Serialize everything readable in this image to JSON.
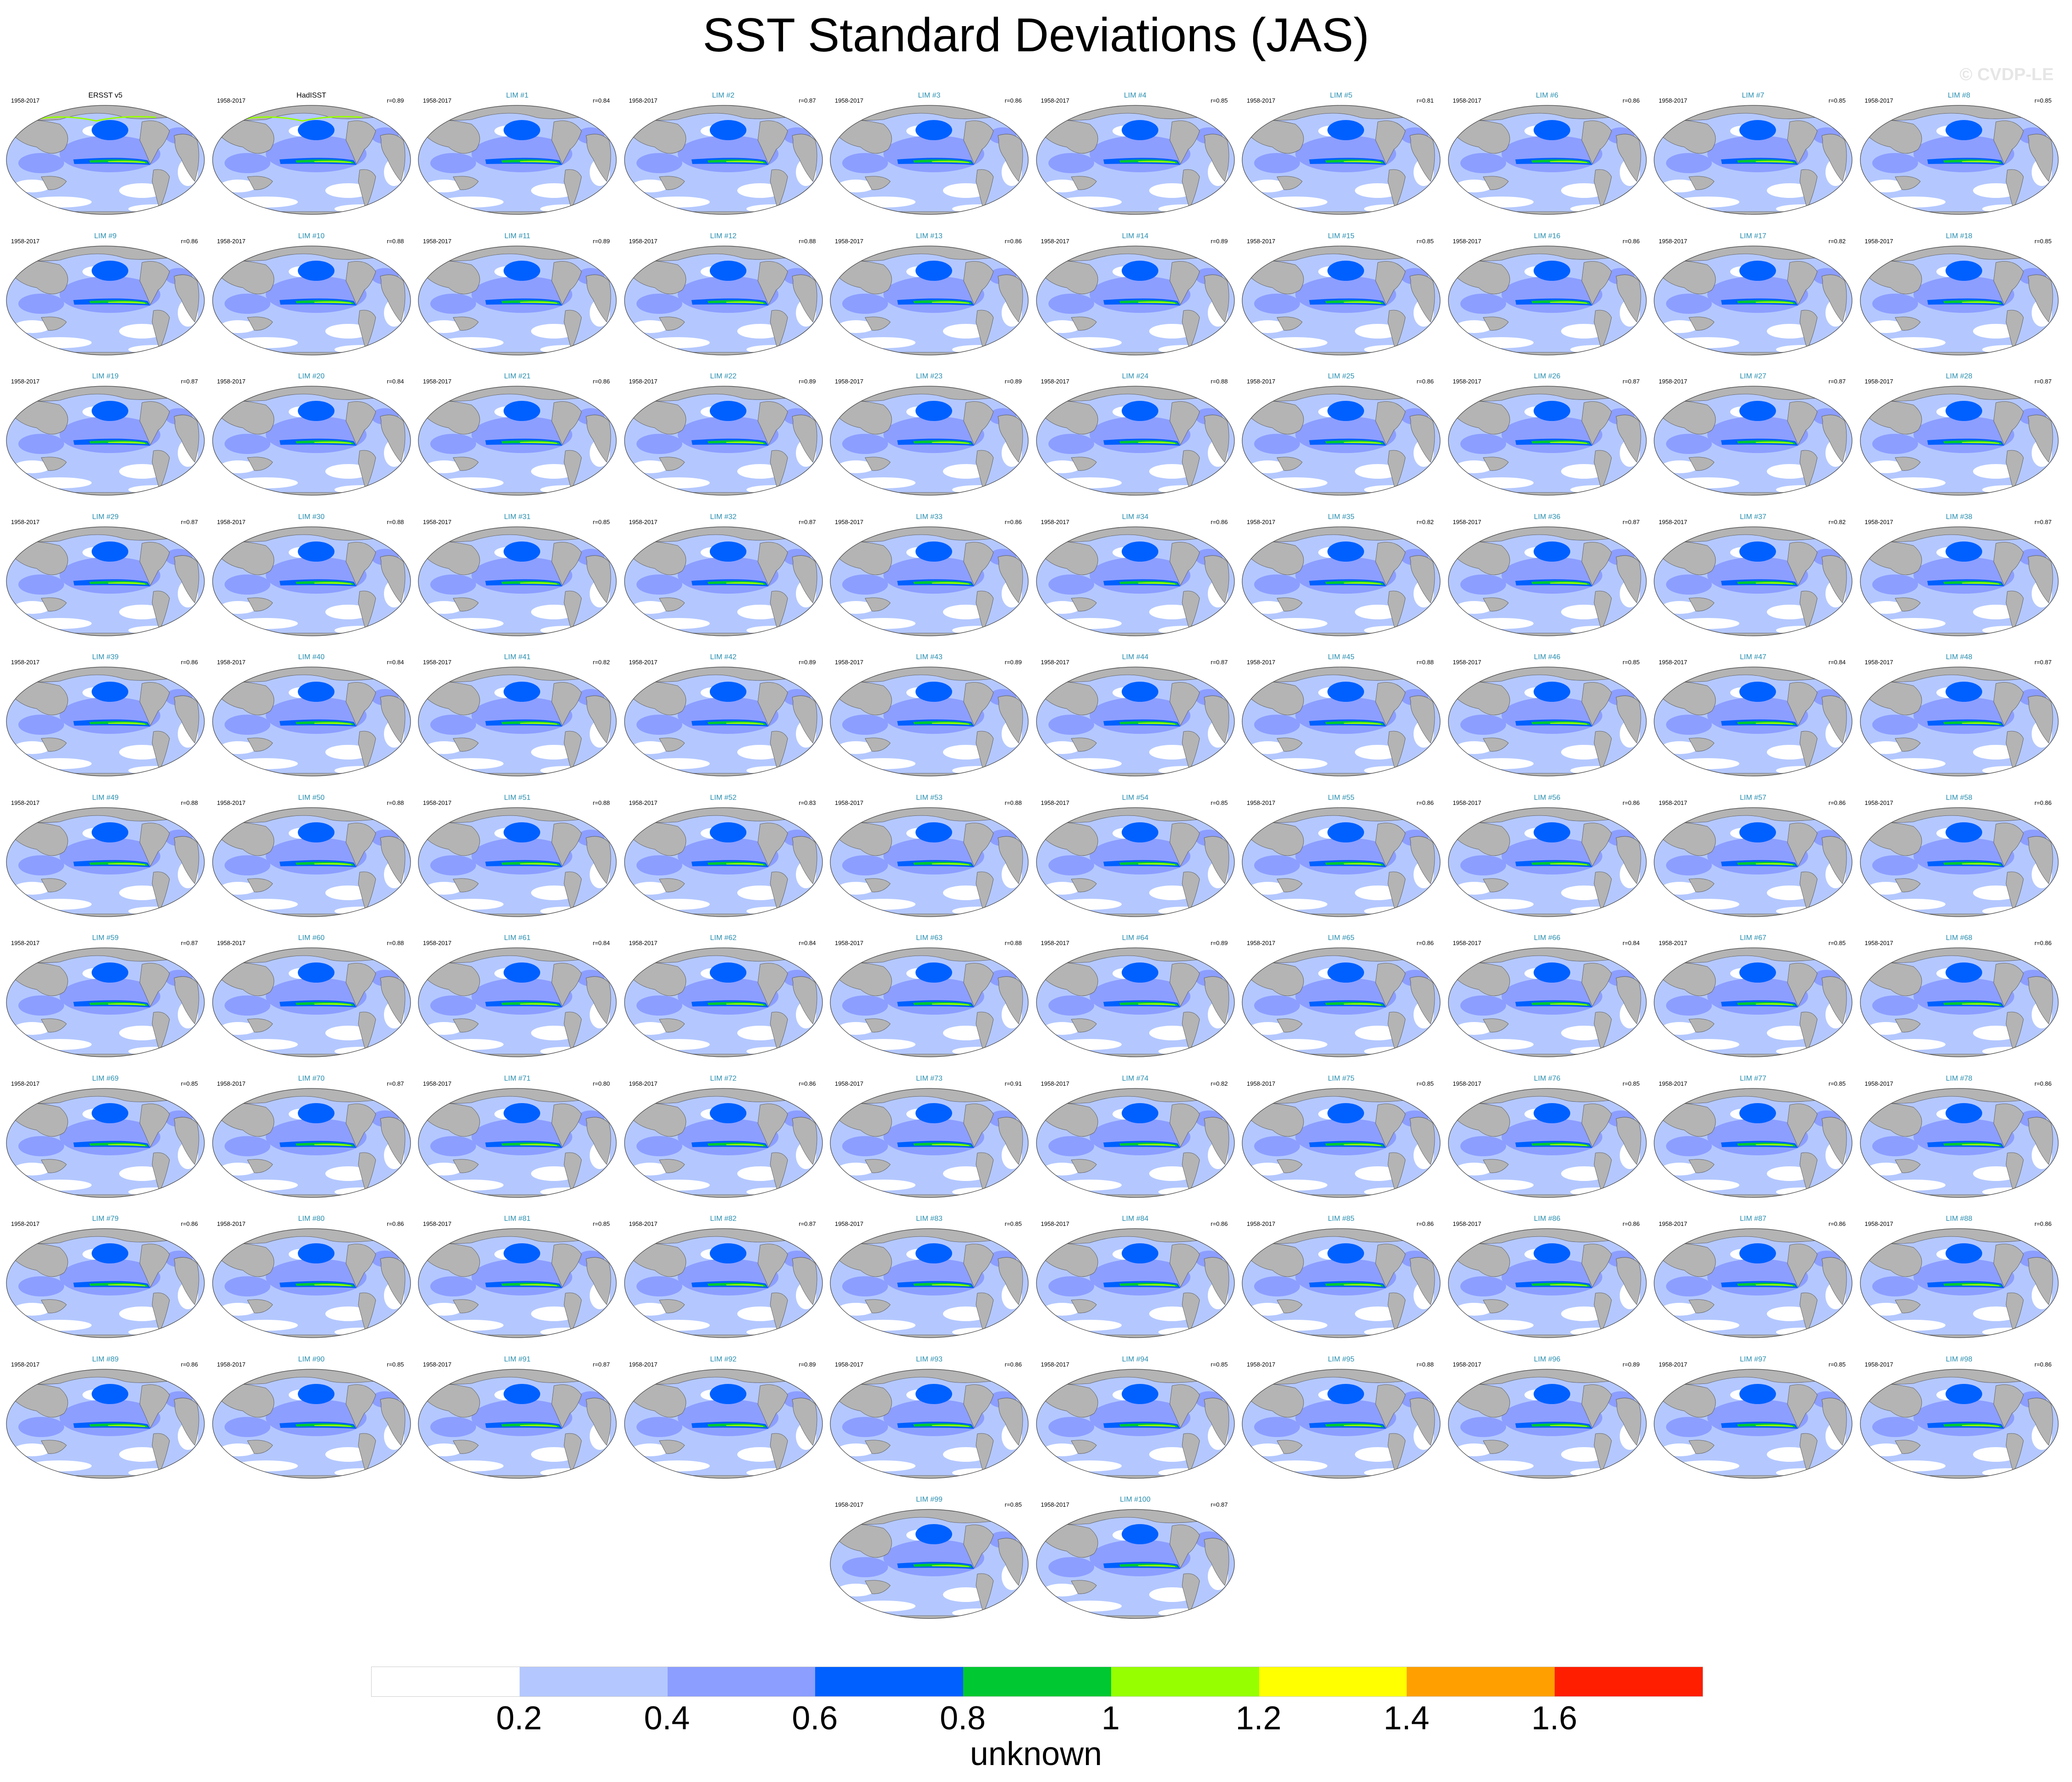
{
  "page": {
    "title": "SST Standard Deviations (JAS)",
    "watermark": "© CVDP-LE"
  },
  "chart_data": {
    "type": "heatmap",
    "title": "SST Standard Deviations (JAS)",
    "colorbar": {
      "levels": [
        0.2,
        0.4,
        0.6,
        0.8,
        1,
        1.2,
        1.4,
        1.6
      ],
      "tick_labels": [
        "0.2",
        "0.4",
        "0.6",
        "0.8",
        "1",
        "1.2",
        "1.4",
        "1.6"
      ],
      "colors": [
        "#ffffff",
        "#b4c8ff",
        "#8c9eff",
        "#0060ff",
        "#00c832",
        "#96ff00",
        "#ffff00",
        "#ffa000",
        "#ff1e00"
      ],
      "unit_label": "unknown"
    },
    "period": "1958-2017",
    "panels": [
      {
        "title": "ERSST v5",
        "period": "1958-2017",
        "corr": "",
        "obs": true
      },
      {
        "title": "HadISST",
        "period": "1958-2017",
        "corr": "r=0.89",
        "obs": true
      },
      {
        "title": "LIM #1",
        "period": "1958-2017",
        "corr": "r=0.84"
      },
      {
        "title": "LIM #2",
        "period": "1958-2017",
        "corr": "r=0.87"
      },
      {
        "title": "LIM #3",
        "period": "1958-2017",
        "corr": "r=0.86"
      },
      {
        "title": "LIM #4",
        "period": "1958-2017",
        "corr": "r=0.85"
      },
      {
        "title": "LIM #5",
        "period": "1958-2017",
        "corr": "r=0.81"
      },
      {
        "title": "LIM #6",
        "period": "1958-2017",
        "corr": "r=0.86"
      },
      {
        "title": "LIM #7",
        "period": "1958-2017",
        "corr": "r=0.85"
      },
      {
        "title": "LIM #8",
        "period": "1958-2017",
        "corr": "r=0.85"
      },
      {
        "title": "LIM #9",
        "period": "1958-2017",
        "corr": "r=0.86"
      },
      {
        "title": "LIM #10",
        "period": "1958-2017",
        "corr": "r=0.88"
      },
      {
        "title": "LIM #11",
        "period": "1958-2017",
        "corr": "r=0.89"
      },
      {
        "title": "LIM #12",
        "period": "1958-2017",
        "corr": "r=0.88"
      },
      {
        "title": "LIM #13",
        "period": "1958-2017",
        "corr": "r=0.86"
      },
      {
        "title": "LIM #14",
        "period": "1958-2017",
        "corr": "r=0.89"
      },
      {
        "title": "LIM #15",
        "period": "1958-2017",
        "corr": "r=0.85"
      },
      {
        "title": "LIM #16",
        "period": "1958-2017",
        "corr": "r=0.86"
      },
      {
        "title": "LIM #17",
        "period": "1958-2017",
        "corr": "r=0.82"
      },
      {
        "title": "LIM #18",
        "period": "1958-2017",
        "corr": "r=0.85"
      },
      {
        "title": "LIM #19",
        "period": "1958-2017",
        "corr": "r=0.87"
      },
      {
        "title": "LIM #20",
        "period": "1958-2017",
        "corr": "r=0.84"
      },
      {
        "title": "LIM #21",
        "period": "1958-2017",
        "corr": "r=0.86"
      },
      {
        "title": "LIM #22",
        "period": "1958-2017",
        "corr": "r=0.89"
      },
      {
        "title": "LIM #23",
        "period": "1958-2017",
        "corr": "r=0.89"
      },
      {
        "title": "LIM #24",
        "period": "1958-2017",
        "corr": "r=0.88"
      },
      {
        "title": "LIM #25",
        "period": "1958-2017",
        "corr": "r=0.86"
      },
      {
        "title": "LIM #26",
        "period": "1958-2017",
        "corr": "r=0.87"
      },
      {
        "title": "LIM #27",
        "period": "1958-2017",
        "corr": "r=0.87"
      },
      {
        "title": "LIM #28",
        "period": "1958-2017",
        "corr": "r=0.87"
      },
      {
        "title": "LIM #29",
        "period": "1958-2017",
        "corr": "r=0.87"
      },
      {
        "title": "LIM #30",
        "period": "1958-2017",
        "corr": "r=0.88"
      },
      {
        "title": "LIM #31",
        "period": "1958-2017",
        "corr": "r=0.85"
      },
      {
        "title": "LIM #32",
        "period": "1958-2017",
        "corr": "r=0.87"
      },
      {
        "title": "LIM #33",
        "period": "1958-2017",
        "corr": "r=0.86"
      },
      {
        "title": "LIM #34",
        "period": "1958-2017",
        "corr": "r=0.86"
      },
      {
        "title": "LIM #35",
        "period": "1958-2017",
        "corr": "r=0.82"
      },
      {
        "title": "LIM #36",
        "period": "1958-2017",
        "corr": "r=0.87"
      },
      {
        "title": "LIM #37",
        "period": "1958-2017",
        "corr": "r=0.82"
      },
      {
        "title": "LIM #38",
        "period": "1958-2017",
        "corr": "r=0.87"
      },
      {
        "title": "LIM #39",
        "period": "1958-2017",
        "corr": "r=0.86"
      },
      {
        "title": "LIM #40",
        "period": "1958-2017",
        "corr": "r=0.84"
      },
      {
        "title": "LIM #41",
        "period": "1958-2017",
        "corr": "r=0.82"
      },
      {
        "title": "LIM #42",
        "period": "1958-2017",
        "corr": "r=0.89"
      },
      {
        "title": "LIM #43",
        "period": "1958-2017",
        "corr": "r=0.89"
      },
      {
        "title": "LIM #44",
        "period": "1958-2017",
        "corr": "r=0.87"
      },
      {
        "title": "LIM #45",
        "period": "1958-2017",
        "corr": "r=0.88"
      },
      {
        "title": "LIM #46",
        "period": "1958-2017",
        "corr": "r=0.85"
      },
      {
        "title": "LIM #47",
        "period": "1958-2017",
        "corr": "r=0.84"
      },
      {
        "title": "LIM #48",
        "period": "1958-2017",
        "corr": "r=0.87"
      },
      {
        "title": "LIM #49",
        "period": "1958-2017",
        "corr": "r=0.88"
      },
      {
        "title": "LIM #50",
        "period": "1958-2017",
        "corr": "r=0.88"
      },
      {
        "title": "LIM #51",
        "period": "1958-2017",
        "corr": "r=0.88"
      },
      {
        "title": "LIM #52",
        "period": "1958-2017",
        "corr": "r=0.83"
      },
      {
        "title": "LIM #53",
        "period": "1958-2017",
        "corr": "r=0.88"
      },
      {
        "title": "LIM #54",
        "period": "1958-2017",
        "corr": "r=0.85"
      },
      {
        "title": "LIM #55",
        "period": "1958-2017",
        "corr": "r=0.86"
      },
      {
        "title": "LIM #56",
        "period": "1958-2017",
        "corr": "r=0.86"
      },
      {
        "title": "LIM #57",
        "period": "1958-2017",
        "corr": "r=0.86"
      },
      {
        "title": "LIM #58",
        "period": "1958-2017",
        "corr": "r=0.86"
      },
      {
        "title": "LIM #59",
        "period": "1958-2017",
        "corr": "r=0.87"
      },
      {
        "title": "LIM #60",
        "period": "1958-2017",
        "corr": "r=0.88"
      },
      {
        "title": "LIM #61",
        "period": "1958-2017",
        "corr": "r=0.84"
      },
      {
        "title": "LIM #62",
        "period": "1958-2017",
        "corr": "r=0.84"
      },
      {
        "title": "LIM #63",
        "period": "1958-2017",
        "corr": "r=0.88"
      },
      {
        "title": "LIM #64",
        "period": "1958-2017",
        "corr": "r=0.89"
      },
      {
        "title": "LIM #65",
        "period": "1958-2017",
        "corr": "r=0.86"
      },
      {
        "title": "LIM #66",
        "period": "1958-2017",
        "corr": "r=0.84"
      },
      {
        "title": "LIM #67",
        "period": "1958-2017",
        "corr": "r=0.85"
      },
      {
        "title": "LIM #68",
        "period": "1958-2017",
        "corr": "r=0.86"
      },
      {
        "title": "LIM #69",
        "period": "1958-2017",
        "corr": "r=0.85"
      },
      {
        "title": "LIM #70",
        "period": "1958-2017",
        "corr": "r=0.87"
      },
      {
        "title": "LIM #71",
        "period": "1958-2017",
        "corr": "r=0.80"
      },
      {
        "title": "LIM #72",
        "period": "1958-2017",
        "corr": "r=0.86"
      },
      {
        "title": "LIM #73",
        "period": "1958-2017",
        "corr": "r=0.91"
      },
      {
        "title": "LIM #74",
        "period": "1958-2017",
        "corr": "r=0.82"
      },
      {
        "title": "LIM #75",
        "period": "1958-2017",
        "corr": "r=0.85"
      },
      {
        "title": "LIM #76",
        "period": "1958-2017",
        "corr": "r=0.85"
      },
      {
        "title": "LIM #77",
        "period": "1958-2017",
        "corr": "r=0.85"
      },
      {
        "title": "LIM #78",
        "period": "1958-2017",
        "corr": "r=0.86"
      },
      {
        "title": "LIM #79",
        "period": "1958-2017",
        "corr": "r=0.86"
      },
      {
        "title": "LIM #80",
        "period": "1958-2017",
        "corr": "r=0.86"
      },
      {
        "title": "LIM #81",
        "period": "1958-2017",
        "corr": "r=0.85"
      },
      {
        "title": "LIM #82",
        "period": "1958-2017",
        "corr": "r=0.87"
      },
      {
        "title": "LIM #83",
        "period": "1958-2017",
        "corr": "r=0.85"
      },
      {
        "title": "LIM #84",
        "period": "1958-2017",
        "corr": "r=0.86"
      },
      {
        "title": "LIM #85",
        "period": "1958-2017",
        "corr": "r=0.86"
      },
      {
        "title": "LIM #86",
        "period": "1958-2017",
        "corr": "r=0.86"
      },
      {
        "title": "LIM #87",
        "period": "1958-2017",
        "corr": "r=0.86"
      },
      {
        "title": "LIM #88",
        "period": "1958-2017",
        "corr": "r=0.86"
      },
      {
        "title": "LIM #89",
        "period": "1958-2017",
        "corr": "r=0.86"
      },
      {
        "title": "LIM #90",
        "period": "1958-2017",
        "corr": "r=0.85"
      },
      {
        "title": "LIM #91",
        "period": "1958-2017",
        "corr": "r=0.87"
      },
      {
        "title": "LIM #92",
        "period": "1958-2017",
        "corr": "r=0.89"
      },
      {
        "title": "LIM #93",
        "period": "1958-2017",
        "corr": "r=0.86"
      },
      {
        "title": "LIM #94",
        "period": "1958-2017",
        "corr": "r=0.85"
      },
      {
        "title": "LIM #95",
        "period": "1958-2017",
        "corr": "r=0.88"
      },
      {
        "title": "LIM #96",
        "period": "1958-2017",
        "corr": "r=0.89"
      },
      {
        "title": "LIM #97",
        "period": "1958-2017",
        "corr": "r=0.85"
      },
      {
        "title": "LIM #98",
        "period": "1958-2017",
        "corr": "r=0.86"
      },
      {
        "title": "LIM #99",
        "period": "1958-2017",
        "corr": "r=0.85"
      },
      {
        "title": "LIM #100",
        "period": "1958-2017",
        "corr": "r=0.87"
      }
    ]
  }
}
